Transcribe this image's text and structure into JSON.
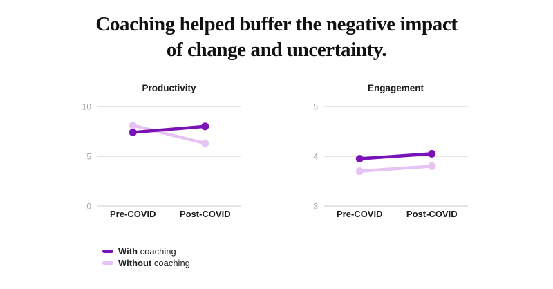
{
  "title": {
    "line1": "Coaching helped buffer the negative impact",
    "line2": "of change and uncertainty."
  },
  "colors": {
    "with_coaching": "#7A12B8",
    "without_coaching": "#E7C3F4",
    "gridline": "#cccccc",
    "tick_label": "#a3a3a3",
    "axis_label": "#1b1b1b",
    "title_text": "#111111"
  },
  "legend": {
    "items": [
      {
        "bold": "With",
        "rest": " coaching",
        "color": "#7A12B8"
      },
      {
        "bold": "Without",
        "rest": " coaching",
        "color": "#E7C3F4"
      }
    ]
  },
  "chart_data": [
    {
      "type": "line",
      "title": "Productivity",
      "categories": [
        "Pre-COVID",
        "Post-COVID"
      ],
      "ylim": [
        0,
        10
      ],
      "yticks": [
        10,
        5,
        0
      ],
      "grid": true,
      "legend_position": "bottom-left",
      "series": [
        {
          "name": "With coaching",
          "color": "#7A12B8",
          "values": [
            7.4,
            8.0
          ]
        },
        {
          "name": "Without coaching",
          "color": "#E7C3F4",
          "values": [
            8.1,
            6.3
          ]
        }
      ]
    },
    {
      "type": "line",
      "title": "Engagement",
      "categories": [
        "Pre-COVID",
        "Post-COVID"
      ],
      "ylim": [
        3,
        5
      ],
      "yticks": [
        5,
        4,
        3
      ],
      "grid": true,
      "legend_position": "bottom-left",
      "series": [
        {
          "name": "With coaching",
          "color": "#7A12B8",
          "values": [
            3.95,
            4.05
          ]
        },
        {
          "name": "Without coaching",
          "color": "#E7C3F4",
          "values": [
            3.7,
            3.8
          ]
        }
      ]
    }
  ]
}
